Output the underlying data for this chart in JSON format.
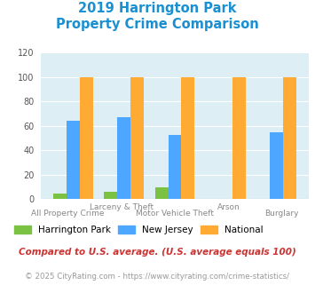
{
  "title_line1": "2019 Harrington Park",
  "title_line2": "Property Crime Comparison",
  "categories": [
    "All Property Crime",
    "Larceny & Theft",
    "Motor Vehicle Theft",
    "Arson",
    "Burglary"
  ],
  "label_top": [
    "",
    "Larceny & Theft",
    "",
    "Arson",
    ""
  ],
  "label_bot": [
    "All Property Crime",
    "",
    "Motor Vehicle Theft",
    "",
    "Burglary"
  ],
  "harrington_park": [
    5,
    6,
    10,
    0,
    0
  ],
  "new_jersey": [
    64,
    67,
    53,
    0,
    55
  ],
  "national": [
    100,
    100,
    100,
    100,
    100
  ],
  "hp_color": "#7bc142",
  "nj_color": "#4da6ff",
  "nat_color": "#ffaa33",
  "ylim": [
    0,
    120
  ],
  "yticks": [
    0,
    20,
    40,
    60,
    80,
    100,
    120
  ],
  "bg_color": "#ddeef5",
  "title_color": "#1a8fd1",
  "label_color": "#888888",
  "footnote1": "Compared to U.S. average. (U.S. average equals 100)",
  "footnote2": "© 2025 CityRating.com - https://www.cityrating.com/crime-statistics/",
  "footnote1_color": "#cc3333",
  "footnote2_color": "#999999",
  "url_color": "#3399cc"
}
